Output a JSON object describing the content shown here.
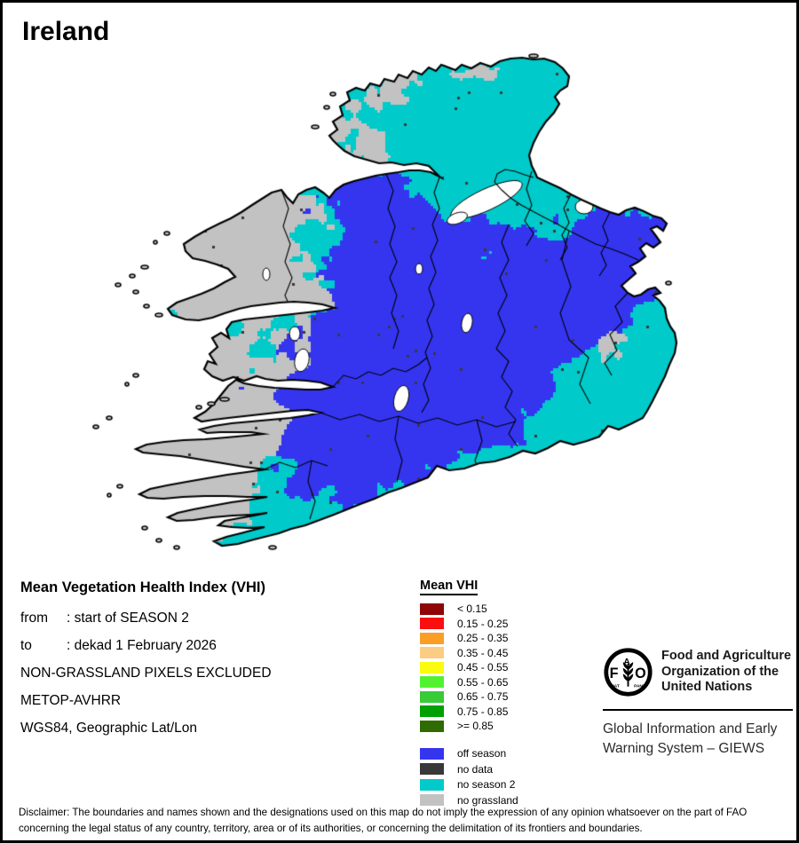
{
  "title": "Ireland",
  "info": {
    "heading": "Mean Vegetation Health Index (VHI)",
    "from_label": "from",
    "from_value": ": start of SEASON 2",
    "to_label": "to",
    "to_value": ": dekad 1 February 2026",
    "line4": "NON-GRASSLAND PIXELS EXCLUDED",
    "line5": "METOP-AVHRR",
    "line6": "WGS84, Geographic Lat/Lon"
  },
  "legend": {
    "title": "Mean VHI",
    "vhi_classes": [
      {
        "label": "< 0.15",
        "color": "#8F0606"
      },
      {
        "label": "0.15 - 0.25",
        "color": "#FB0E0E"
      },
      {
        "label": "0.25 - 0.35",
        "color": "#FB9E25"
      },
      {
        "label": "0.35 - 0.45",
        "color": "#FBCC83"
      },
      {
        "label": "0.45 - 0.55",
        "color": "#FBFB0E"
      },
      {
        "label": "0.55 - 0.65",
        "color": "#53F231"
      },
      {
        "label": "0.65 - 0.75",
        "color": "#37CB37"
      },
      {
        "label": "0.75 - 0.85",
        "color": "#00A000"
      },
      {
        "label": ">= 0.85",
        "color": "#2F6B00"
      }
    ],
    "season_classes": [
      {
        "label": "off season",
        "color": "#3535F0"
      },
      {
        "label": "no data",
        "color": "#383838"
      },
      {
        "label": "no season 2",
        "color": "#00CACA"
      },
      {
        "label": "no grassland",
        "color": "#C2C2C2"
      }
    ]
  },
  "branding": {
    "fao_lines": [
      "Food and Agriculture",
      "Organization of the",
      "United Nations"
    ],
    "giews_lines": [
      "Global Information and Early",
      "Warning System – GIEWS"
    ],
    "logo_motto_left": "FIAT",
    "logo_motto_right": "PANIS"
  },
  "disclaimer_lines": [
    "Disclaimer: The boundaries and names shown and the designations used on this map do not imply the expression of any opinion whatsoever on the part of FAO",
    "concerning the legal status of any country, territory, area or of its authorities, or concerning the delimitation of its frontiers and boundaries."
  ]
}
